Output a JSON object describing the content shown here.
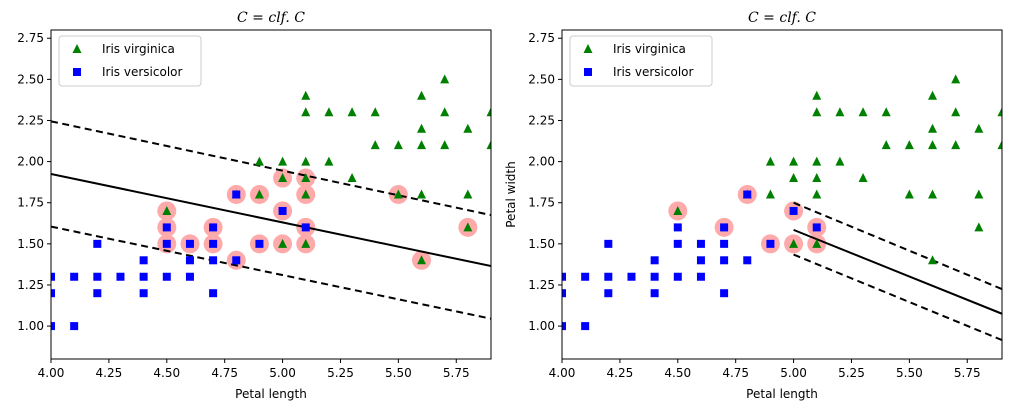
{
  "chart_data": [
    {
      "type": "scatter",
      "title": "C = clf. C",
      "xlabel": "Petal length",
      "ylabel": "",
      "xlim": [
        4.0,
        5.9
      ],
      "ylim": [
        0.8,
        2.8
      ],
      "xticks": [
        "4.00",
        "4.25",
        "4.50",
        "4.75",
        "5.00",
        "5.25",
        "5.50",
        "5.75"
      ],
      "yticks": [
        "1.00",
        "1.25",
        "1.50",
        "1.75",
        "2.00",
        "2.25",
        "2.50",
        "2.75"
      ],
      "legend_position": "top-left",
      "series": [
        {
          "name": "Iris virginica",
          "marker": "triangle",
          "color": "#008000",
          "points": [
            [
              4.5,
              1.7
            ],
            [
              4.8,
              1.8
            ],
            [
              4.9,
              1.8
            ],
            [
              4.9,
              2.0
            ],
            [
              5.0,
              1.5
            ],
            [
              5.0,
              1.9
            ],
            [
              5.0,
              2.0
            ],
            [
              5.1,
              1.5
            ],
            [
              5.1,
              1.8
            ],
            [
              5.1,
              1.9
            ],
            [
              5.1,
              2.0
            ],
            [
              5.1,
              2.3
            ],
            [
              5.1,
              2.4
            ],
            [
              5.2,
              2.0
            ],
            [
              5.2,
              2.3
            ],
            [
              5.3,
              1.9
            ],
            [
              5.3,
              2.3
            ],
            [
              5.4,
              2.1
            ],
            [
              5.4,
              2.3
            ],
            [
              5.5,
              1.8
            ],
            [
              5.5,
              2.1
            ],
            [
              5.6,
              1.4
            ],
            [
              5.6,
              1.8
            ],
            [
              5.6,
              2.1
            ],
            [
              5.6,
              2.2
            ],
            [
              5.6,
              2.4
            ],
            [
              5.7,
              2.1
            ],
            [
              5.7,
              2.3
            ],
            [
              5.7,
              2.5
            ],
            [
              5.8,
              1.6
            ],
            [
              5.8,
              1.8
            ],
            [
              5.8,
              2.2
            ],
            [
              5.9,
              2.1
            ],
            [
              5.9,
              2.3
            ]
          ]
        },
        {
          "name": "Iris versicolor",
          "marker": "square",
          "color": "#0000ff",
          "points": [
            [
              4.0,
              1.0
            ],
            [
              4.0,
              1.2
            ],
            [
              4.0,
              1.3
            ],
            [
              4.1,
              1.0
            ],
            [
              4.1,
              1.3
            ],
            [
              4.2,
              1.2
            ],
            [
              4.2,
              1.3
            ],
            [
              4.2,
              1.5
            ],
            [
              4.3,
              1.3
            ],
            [
              4.4,
              1.2
            ],
            [
              4.4,
              1.3
            ],
            [
              4.4,
              1.4
            ],
            [
              4.5,
              1.3
            ],
            [
              4.5,
              1.5
            ],
            [
              4.5,
              1.6
            ],
            [
              4.6,
              1.3
            ],
            [
              4.6,
              1.4
            ],
            [
              4.6,
              1.5
            ],
            [
              4.7,
              1.2
            ],
            [
              4.7,
              1.4
            ],
            [
              4.7,
              1.5
            ],
            [
              4.7,
              1.6
            ],
            [
              4.8,
              1.4
            ],
            [
              4.8,
              1.8
            ],
            [
              4.9,
              1.5
            ],
            [
              5.0,
              1.7
            ],
            [
              5.1,
              1.6
            ]
          ]
        }
      ],
      "support_vectors": {
        "color": "#ffaaaa",
        "points": [
          [
            4.5,
            1.7
          ],
          [
            4.5,
            1.6
          ],
          [
            4.5,
            1.5
          ],
          [
            4.6,
            1.5
          ],
          [
            4.7,
            1.6
          ],
          [
            4.7,
            1.5
          ],
          [
            4.8,
            1.8
          ],
          [
            4.8,
            1.4
          ],
          [
            4.9,
            1.8
          ],
          [
            4.9,
            1.5
          ],
          [
            5.0,
            1.9
          ],
          [
            5.0,
            1.7
          ],
          [
            5.0,
            1.5
          ],
          [
            5.1,
            1.9
          ],
          [
            5.1,
            1.8
          ],
          [
            5.1,
            1.6
          ],
          [
            5.1,
            1.5
          ],
          [
            5.5,
            1.8
          ],
          [
            5.6,
            1.4
          ],
          [
            5.8,
            1.6
          ]
        ]
      },
      "decision_boundary": {
        "x": [
          4.0,
          5.9
        ],
        "y": [
          1.925,
          1.365
        ]
      },
      "margins": [
        {
          "x": [
            4.0,
            5.9
          ],
          "y": [
            2.245,
            1.675
          ]
        },
        {
          "x": [
            4.0,
            5.9
          ],
          "y": [
            1.605,
            1.045
          ]
        }
      ]
    },
    {
      "type": "scatter",
      "title": "C = clf. C",
      "xlabel": "Petal length",
      "ylabel": "Petal width",
      "xlim": [
        4.0,
        5.9
      ],
      "ylim": [
        0.8,
        2.8
      ],
      "xticks": [
        "4.00",
        "4.25",
        "4.50",
        "4.75",
        "5.00",
        "5.25",
        "5.50",
        "5.75"
      ],
      "yticks": [
        "1.00",
        "1.25",
        "1.50",
        "1.75",
        "2.00",
        "2.25",
        "2.50",
        "2.75"
      ],
      "legend_position": "top-left",
      "series": [
        {
          "name": "Iris virginica",
          "marker": "triangle",
          "color": "#008000",
          "points": [
            [
              4.5,
              1.7
            ],
            [
              4.8,
              1.8
            ],
            [
              4.9,
              1.8
            ],
            [
              4.9,
              2.0
            ],
            [
              5.0,
              1.5
            ],
            [
              5.0,
              1.9
            ],
            [
              5.0,
              2.0
            ],
            [
              5.1,
              1.5
            ],
            [
              5.1,
              1.8
            ],
            [
              5.1,
              1.9
            ],
            [
              5.1,
              2.0
            ],
            [
              5.1,
              2.3
            ],
            [
              5.1,
              2.4
            ],
            [
              5.2,
              2.0
            ],
            [
              5.2,
              2.3
            ],
            [
              5.3,
              1.9
            ],
            [
              5.3,
              2.3
            ],
            [
              5.4,
              2.1
            ],
            [
              5.4,
              2.3
            ],
            [
              5.5,
              1.8
            ],
            [
              5.5,
              2.1
            ],
            [
              5.6,
              1.4
            ],
            [
              5.6,
              1.8
            ],
            [
              5.6,
              2.1
            ],
            [
              5.6,
              2.2
            ],
            [
              5.6,
              2.4
            ],
            [
              5.7,
              2.1
            ],
            [
              5.7,
              2.3
            ],
            [
              5.7,
              2.5
            ],
            [
              5.8,
              1.6
            ],
            [
              5.8,
              1.8
            ],
            [
              5.8,
              2.2
            ],
            [
              5.9,
              2.1
            ],
            [
              5.9,
              2.3
            ]
          ]
        },
        {
          "name": "Iris versicolor",
          "marker": "square",
          "color": "#0000ff",
          "points": [
            [
              4.0,
              1.0
            ],
            [
              4.0,
              1.2
            ],
            [
              4.0,
              1.3
            ],
            [
              4.1,
              1.0
            ],
            [
              4.1,
              1.3
            ],
            [
              4.2,
              1.2
            ],
            [
              4.2,
              1.3
            ],
            [
              4.2,
              1.5
            ],
            [
              4.3,
              1.3
            ],
            [
              4.4,
              1.2
            ],
            [
              4.4,
              1.3
            ],
            [
              4.4,
              1.4
            ],
            [
              4.5,
              1.3
            ],
            [
              4.5,
              1.5
            ],
            [
              4.5,
              1.6
            ],
            [
              4.6,
              1.3
            ],
            [
              4.6,
              1.4
            ],
            [
              4.6,
              1.5
            ],
            [
              4.7,
              1.2
            ],
            [
              4.7,
              1.4
            ],
            [
              4.7,
              1.5
            ],
            [
              4.7,
              1.6
            ],
            [
              4.8,
              1.4
            ],
            [
              4.8,
              1.8
            ],
            [
              4.9,
              1.5
            ],
            [
              5.0,
              1.7
            ],
            [
              5.1,
              1.6
            ]
          ]
        }
      ],
      "support_vectors": {
        "color": "#ffaaaa",
        "points": [
          [
            4.5,
            1.7
          ],
          [
            4.7,
            1.6
          ],
          [
            4.8,
            1.8
          ],
          [
            4.9,
            1.5
          ],
          [
            5.0,
            1.7
          ],
          [
            5.0,
            1.5
          ],
          [
            5.1,
            1.6
          ],
          [
            5.1,
            1.5
          ]
        ]
      },
      "decision_boundary": {
        "x": [
          5.0,
          5.9
        ],
        "y": [
          1.585,
          1.075
        ]
      },
      "margins": [
        {
          "x": [
            5.0,
            5.9
          ],
          "y": [
            1.75,
            1.225
          ]
        },
        {
          "x": [
            5.0,
            5.9
          ],
          "y": [
            1.435,
            0.915
          ]
        }
      ]
    }
  ]
}
